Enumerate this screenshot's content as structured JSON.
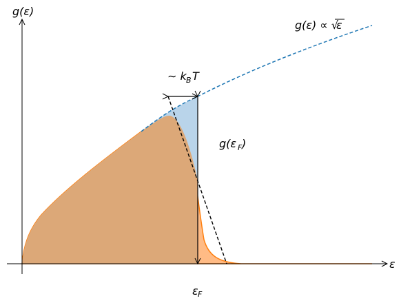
{
  "labels": {
    "y_axis": "g(ε)",
    "x_axis": "ε",
    "sqrt_relation_left": "g(ε) ∝ √",
    "sqrt_relation_arg": "ε",
    "thermal_width_prefix": "∼ k",
    "thermal_width_sub": "B",
    "thermal_width_suffix": "T",
    "fermi_dos_main": "g(ε",
    "fermi_dos_sub": "F",
    "fermi_dos_close": ")",
    "fermi_energy_main": "ε",
    "fermi_energy_sub": "F"
  },
  "colors": {
    "dos_curve": "#1f77b4",
    "blue_fill": "#b9d4ea",
    "orange_curve": "#ff7f0e",
    "orange_fill": "#ffbb85",
    "overlap_fill": "#dca878",
    "axis": "#000000"
  }
}
